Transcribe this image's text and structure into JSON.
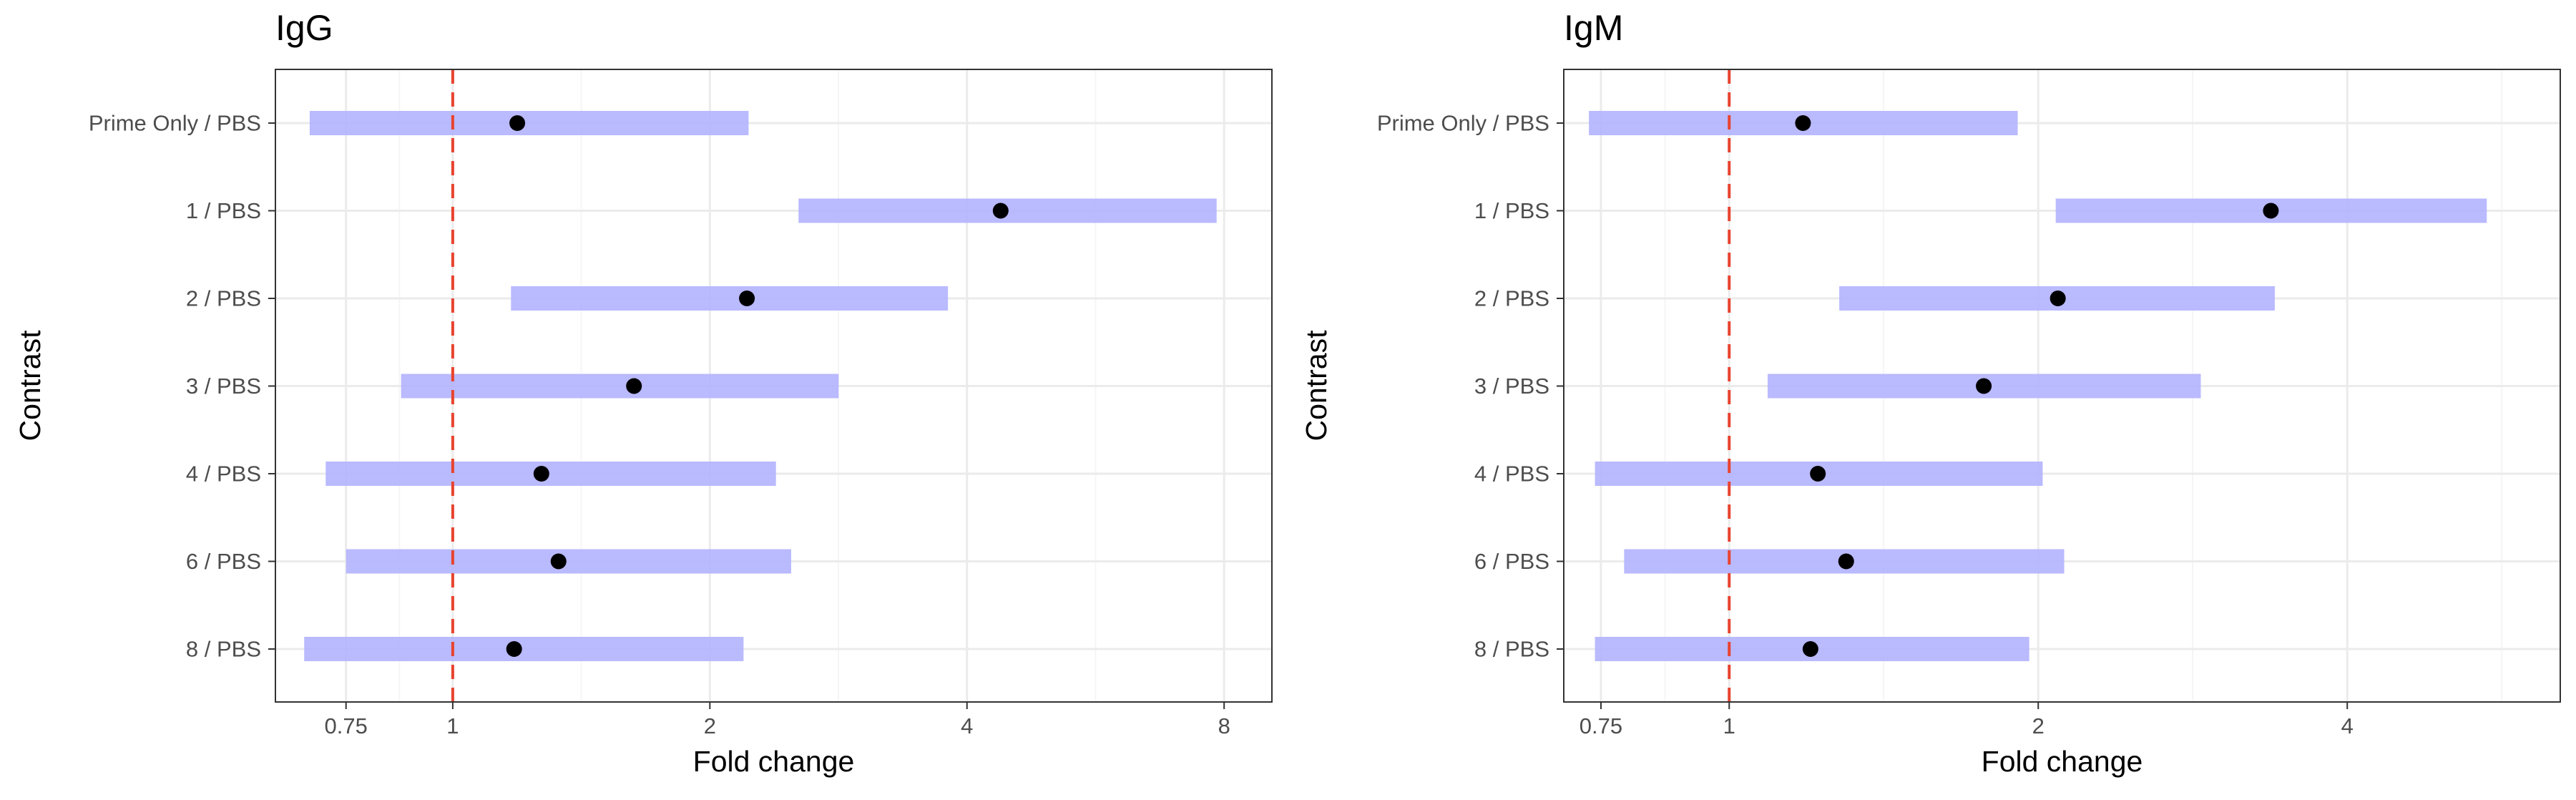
{
  "colors": {
    "ci_bar": "#b3b3ff",
    "point": "#000000",
    "reference_line": "#e8432f",
    "grid_major": "#ebebeb",
    "grid_minor": "#f5f5f5",
    "panel_border": "#333333",
    "tick_label": "#4d4d4d"
  },
  "chart_data": [
    {
      "type": "scatter",
      "title": "IgG",
      "xlabel": "Fold change",
      "ylabel": "Contrast",
      "x_scale": "log2",
      "xlim": [
        0.62,
        9.1
      ],
      "x_ticks": [
        {
          "value": 0.75,
          "label": "0.75"
        },
        {
          "value": 1,
          "label": "1"
        },
        {
          "value": 2,
          "label": "2"
        },
        {
          "value": 4,
          "label": "4"
        },
        {
          "value": 8,
          "label": "8"
        }
      ],
      "x_minor_ticks": [
        0.866,
        1.414,
        2.828,
        5.657
      ],
      "reference_line": 1,
      "grid": true,
      "categories": [
        "Prime Only / PBS",
        "1 / PBS",
        "2 / PBS",
        "3 / PBS",
        "4 / PBS",
        "6 / PBS",
        "8 / PBS"
      ],
      "estimate": [
        1.19,
        4.38,
        2.21,
        1.63,
        1.27,
        1.33,
        1.18
      ],
      "lower": [
        0.68,
        2.54,
        1.17,
        0.87,
        0.71,
        0.75,
        0.67
      ],
      "upper": [
        2.22,
        7.84,
        3.8,
        2.83,
        2.39,
        2.49,
        2.19
      ]
    },
    {
      "type": "scatter",
      "title": "IgM",
      "xlabel": "Fold change",
      "ylabel": "Contrast",
      "x_scale": "log2",
      "xlim": [
        0.69,
        6.45
      ],
      "x_ticks": [
        {
          "value": 0.75,
          "label": "0.75"
        },
        {
          "value": 1,
          "label": "1"
        },
        {
          "value": 2,
          "label": "2"
        },
        {
          "value": 4,
          "label": "4"
        }
      ],
      "x_minor_ticks": [
        0.866,
        1.414,
        2.828,
        5.657
      ],
      "reference_line": 1,
      "grid": true,
      "categories": [
        "Prime Only / PBS",
        "1 / PBS",
        "2 / PBS",
        "3 / PBS",
        "4 / PBS",
        "6 / PBS",
        "8 / PBS"
      ],
      "estimate": [
        1.18,
        3.37,
        2.09,
        1.77,
        1.22,
        1.3,
        1.2
      ],
      "lower": [
        0.73,
        2.08,
        1.28,
        1.09,
        0.74,
        0.79,
        0.74
      ],
      "upper": [
        1.91,
        5.47,
        3.4,
        2.88,
        2.02,
        2.12,
        1.96
      ]
    }
  ]
}
